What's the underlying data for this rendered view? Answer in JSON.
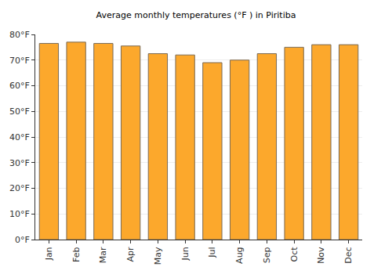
{
  "chart_data": {
    "type": "bar",
    "title": "Average monthly temperatures (°F ) in Piritiba",
    "categories": [
      "Jan",
      "Feb",
      "Mar",
      "Apr",
      "May",
      "Jun",
      "Jul",
      "Aug",
      "Sep",
      "Oct",
      "Nov",
      "Dec"
    ],
    "values": [
      76.5,
      77,
      76.5,
      75.5,
      72.5,
      72,
      69,
      70,
      72.5,
      75,
      76,
      76
    ],
    "color": "#fca82c",
    "ylim": [
      0,
      80
    ],
    "yticks": [
      {
        "value": 0,
        "label": "0°F"
      },
      {
        "value": 10,
        "label": "10°F"
      },
      {
        "value": 20,
        "label": "20°F"
      },
      {
        "value": 30,
        "label": "30°F"
      },
      {
        "value": 40,
        "label": "40°F"
      },
      {
        "value": 50,
        "label": "50°F"
      },
      {
        "value": 60,
        "label": "60°F"
      },
      {
        "value": 70,
        "label": "70°F"
      },
      {
        "value": 80,
        "label": "80°F"
      }
    ],
    "grid": true
  }
}
